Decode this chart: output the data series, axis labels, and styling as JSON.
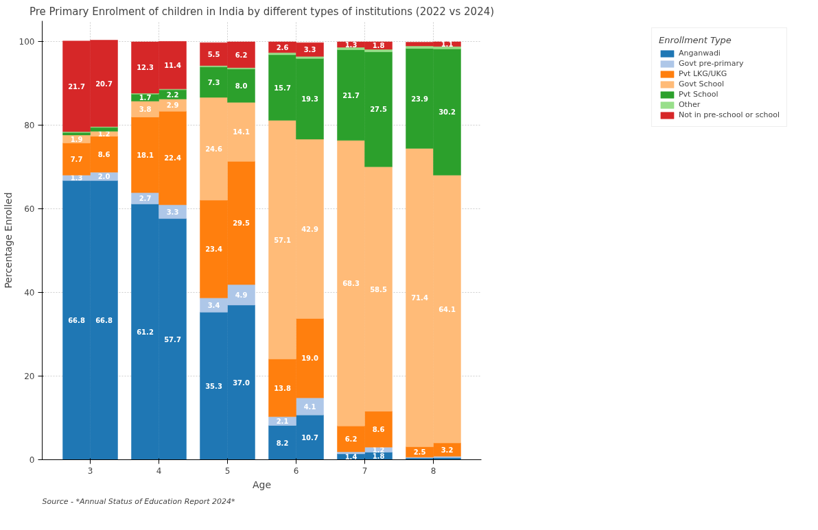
{
  "chart_data": {
    "type": "bar",
    "stacked": true,
    "title": "Pre Primary Enrolment of children in India by different types of institutions (2022 vs 2024)",
    "xlabel": "Age",
    "ylabel": "Percentage Enrolled",
    "legend_title": "Enrollment Type",
    "legend": "top right",
    "grid": true,
    "x": [
      2.8,
      3.2,
      3.8,
      4.2,
      4.8,
      5.2,
      5.8,
      6.2,
      6.8,
      7.2,
      7.8,
      8.2
    ],
    "xlim": [
      2.3,
      8.7
    ],
    "xticks": [
      3,
      4,
      5,
      6,
      7,
      8
    ],
    "ylim": [
      0,
      105
    ],
    "yticks": [
      0,
      20,
      40,
      60,
      80,
      100
    ],
    "series": [
      {
        "name": "Anganwadi",
        "color": "#1f77b4",
        "values": [
          66.8,
          66.8,
          61.2,
          57.7,
          35.3,
          37.0,
          8.2,
          10.7,
          1.4,
          1.8,
          0.4,
          0.5
        ],
        "value_labels": [
          "66.8",
          "66.8",
          "61.2",
          "57.7",
          "35.3",
          "37.0",
          "8.2",
          "10.7",
          "1.4",
          "1.8",
          null,
          null
        ]
      },
      {
        "name": "Govt pre-primary",
        "color": "#aec7e8",
        "values": [
          1.3,
          2.0,
          2.7,
          3.3,
          3.4,
          4.9,
          2.1,
          4.1,
          0.5,
          1.2,
          0.2,
          0.3
        ],
        "value_labels": [
          "1.3",
          "2.0",
          "2.7",
          "3.3",
          "3.4",
          "4.9",
          "2.1",
          "4.1",
          null,
          "1.2",
          null,
          null
        ]
      },
      {
        "name": "Pvt LKG/UKG",
        "color": "#ff7f0e",
        "values": [
          7.7,
          8.6,
          18.1,
          22.4,
          23.4,
          29.5,
          13.8,
          19.0,
          6.2,
          8.6,
          2.5,
          3.2
        ],
        "value_labels": [
          "7.7",
          "8.6",
          "18.1",
          "22.4",
          "23.4",
          "29.5",
          "13.8",
          "19.0",
          "6.2",
          "8.6",
          "2.5",
          "3.2"
        ]
      },
      {
        "name": "Govt School",
        "color": "#ffbb78",
        "values": [
          1.9,
          1.2,
          3.8,
          2.9,
          24.6,
          14.1,
          57.1,
          42.9,
          68.3,
          58.5,
          71.4,
          64.1
        ],
        "value_labels": [
          "1.9",
          "1.2",
          "3.8",
          "2.9",
          "24.6",
          "14.1",
          "57.1",
          "42.9",
          "68.3",
          "58.5",
          "71.4",
          "64.1"
        ]
      },
      {
        "name": "Pvt School",
        "color": "#2ca02c",
        "values": [
          0.6,
          0.9,
          1.7,
          2.2,
          7.3,
          8.0,
          15.7,
          19.3,
          21.7,
          27.5,
          23.9,
          30.2
        ],
        "value_labels": [
          null,
          null,
          "1.7",
          "2.2",
          "7.3",
          "8.0",
          "15.7",
          "19.3",
          "21.7",
          "27.5",
          "23.9",
          "30.2"
        ]
      },
      {
        "name": "Other",
        "color": "#98df8a",
        "values": [
          0.2,
          0.2,
          0.2,
          0.2,
          0.3,
          0.3,
          0.5,
          0.5,
          0.6,
          0.6,
          0.6,
          0.6
        ],
        "value_labels": [
          null,
          null,
          null,
          null,
          null,
          null,
          null,
          null,
          null,
          null,
          null,
          null
        ]
      },
      {
        "name": "Not in pre-school or school",
        "color": "#d62728",
        "values": [
          21.7,
          20.7,
          12.3,
          11.4,
          5.5,
          6.2,
          2.6,
          3.3,
          1.3,
          1.8,
          0.9,
          1.1
        ],
        "value_labels": [
          "21.7",
          "20.7",
          "12.3",
          "11.4",
          "5.5",
          "6.2",
          "2.6",
          "3.3",
          "1.3",
          "1.8",
          null,
          "1.1"
        ]
      }
    ],
    "annotations": [
      "Source - *Annual Status of Education Report 2024*"
    ]
  }
}
